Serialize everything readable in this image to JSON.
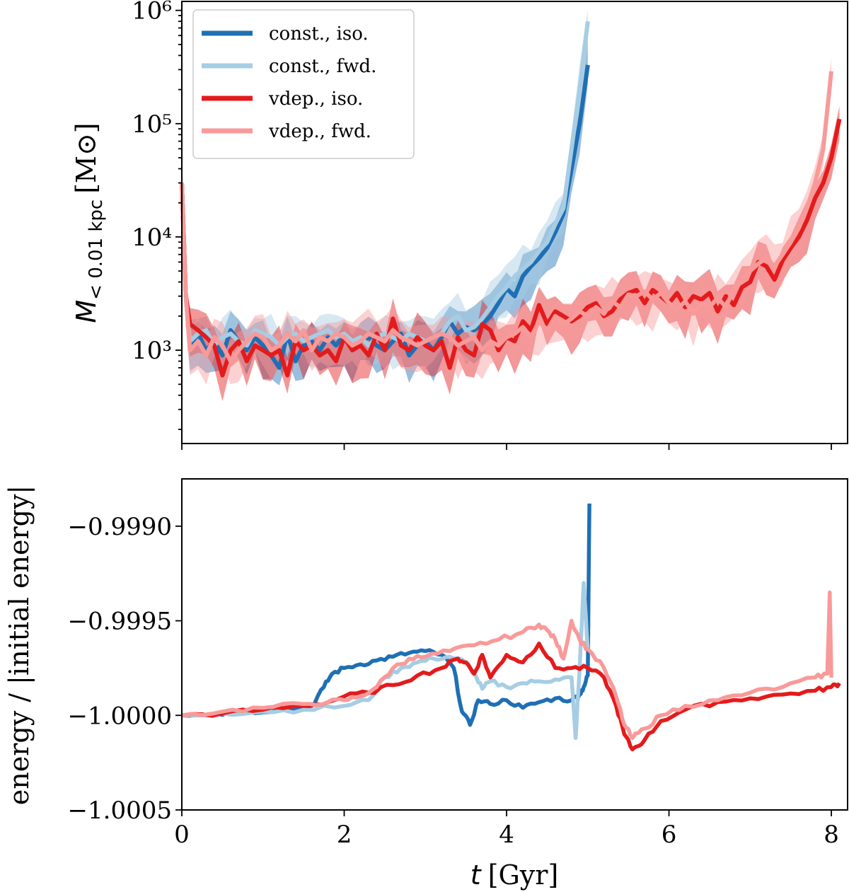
{
  "chart_data": [
    {
      "type": "line",
      "panel": "top",
      "ylabel_symbol": "M",
      "ylabel_subscript": "< 0.01 kpc",
      "ylabel_unit": "[M⊙]",
      "yscale": "log",
      "ylim": [
        150,
        1200000
      ],
      "xlim": [
        0,
        8.2
      ],
      "ytick_labels": [
        "10⁶",
        "10⁵",
        "10⁴",
        "10³"
      ],
      "ytick_values": [
        1000000,
        100000,
        10000,
        1000
      ],
      "grid": false,
      "legend_position": "top-left",
      "legend": [
        {
          "label": "const., iso.",
          "color": "#1f6fb4"
        },
        {
          "label": "const., fwd.",
          "color": "#a6cde3"
        },
        {
          "label": "vdep., iso.",
          "color": "#e31b1c"
        },
        {
          "label": "vdep., fwd.",
          "color": "#f89a99"
        }
      ],
      "series": [
        {
          "name": "const., iso.",
          "color": "#1f6fb4",
          "band_color": "#1f6fb4",
          "x": [
            0,
            0.05,
            0.1,
            0.2,
            0.3,
            0.4,
            0.5,
            0.6,
            0.7,
            0.8,
            0.9,
            1.0,
            1.1,
            1.2,
            1.3,
            1.4,
            1.5,
            1.6,
            1.7,
            1.8,
            1.9,
            2.0,
            2.1,
            2.2,
            2.3,
            2.4,
            2.5,
            2.6,
            2.7,
            2.8,
            2.9,
            3.0,
            3.1,
            3.2,
            3.3,
            3.4,
            3.5,
            3.6,
            3.7,
            3.8,
            3.9,
            4.0,
            4.1,
            4.2,
            4.3,
            4.4,
            4.5,
            4.6,
            4.7,
            4.8,
            4.9,
            5.0
          ],
          "y": [
            30000,
            3000,
            1100,
            1400,
            1000,
            1200,
            900,
            1500,
            1200,
            1000,
            1300,
            1100,
            900,
            700,
            1400,
            800,
            1100,
            1200,
            1000,
            1300,
            1100,
            1400,
            1000,
            1200,
            1300,
            1100,
            1000,
            1200,
            1400,
            900,
            1100,
            1200,
            1000,
            1300,
            1800,
            1400,
            1600,
            1500,
            1700,
            2000,
            2600,
            3500,
            3000,
            4500,
            5500,
            6500,
            8000,
            11000,
            16000,
            40000,
            100000,
            330000
          ]
        },
        {
          "name": "const., fwd.",
          "color": "#a6cde3",
          "band_color": "#a6cde3",
          "x": [
            0,
            0.05,
            0.1,
            0.2,
            0.3,
            0.4,
            0.5,
            0.6,
            0.7,
            0.8,
            0.9,
            1.0,
            1.1,
            1.2,
            1.3,
            1.4,
            1.5,
            1.6,
            1.7,
            1.8,
            1.9,
            2.0,
            2.1,
            2.2,
            2.3,
            2.4,
            2.5,
            2.6,
            2.7,
            2.8,
            2.9,
            3.0,
            3.1,
            3.2,
            3.3,
            3.4,
            3.5,
            3.6,
            3.7,
            3.8,
            3.9,
            4.0,
            4.1,
            4.2,
            4.3,
            4.4,
            4.5,
            4.6,
            4.7,
            4.8,
            4.9,
            5.0
          ],
          "y": [
            30000,
            3000,
            1200,
            1400,
            1500,
            1100,
            1300,
            1400,
            1200,
            1100,
            1500,
            1400,
            1300,
            1100,
            1300,
            1400,
            1200,
            1300,
            1400,
            1500,
            1300,
            1400,
            1200,
            1300,
            1100,
            1300,
            1400,
            1300,
            1200,
            1400,
            1300,
            1200,
            1300,
            1400,
            1800,
            2000,
            1500,
            1600,
            1900,
            2400,
            3000,
            3600,
            4500,
            5200,
            6000,
            7500,
            9000,
            13000,
            18000,
            60000,
            200000,
            800000
          ]
        },
        {
          "name": "vdep., iso.",
          "color": "#e31b1c",
          "band_color": "#e31b1c",
          "x": [
            0,
            0.05,
            0.1,
            0.2,
            0.3,
            0.4,
            0.5,
            0.6,
            0.7,
            0.8,
            0.9,
            1.0,
            1.1,
            1.2,
            1.3,
            1.4,
            1.5,
            1.6,
            1.7,
            1.8,
            1.9,
            2.0,
            2.1,
            2.2,
            2.3,
            2.4,
            2.5,
            2.6,
            2.7,
            2.8,
            2.9,
            3.0,
            3.1,
            3.2,
            3.3,
            3.4,
            3.5,
            3.6,
            3.7,
            3.8,
            3.9,
            4.0,
            4.1,
            4.2,
            4.3,
            4.4,
            4.5,
            4.6,
            4.7,
            4.8,
            4.9,
            5.0,
            5.1,
            5.2,
            5.3,
            5.4,
            5.5,
            5.6,
            5.7,
            5.8,
            5.9,
            6.0,
            6.1,
            6.2,
            6.3,
            6.4,
            6.5,
            6.6,
            6.7,
            6.8,
            6.9,
            7.0,
            7.1,
            7.2,
            7.3,
            7.4,
            7.5,
            7.6,
            7.7,
            7.8,
            7.9,
            8.0,
            8.1
          ],
          "y": [
            30000,
            3000,
            1700,
            1500,
            1300,
            1100,
            600,
            1000,
            1200,
            800,
            1100,
            1000,
            900,
            1000,
            600,
            1200,
            1000,
            1100,
            900,
            1000,
            800,
            1300,
            1000,
            1100,
            900,
            1400,
            1000,
            1900,
            1100,
            1000,
            1300,
            1100,
            1000,
            1200,
            700,
            1300,
            1000,
            900,
            1700,
            1500,
            1000,
            1300,
            1200,
            1800,
            1500,
            2500,
            1700,
            2200,
            2000,
            1800,
            2000,
            2400,
            2600,
            2000,
            2200,
            2800,
            3200,
            3400,
            2600,
            3400,
            3000,
            2600,
            3200,
            2400,
            3000,
            2800,
            3200,
            2200,
            3000,
            2500,
            3600,
            4000,
            6000,
            5500,
            4200,
            6200,
            8000,
            10000,
            14000,
            22000,
            30000,
            50000,
            110000
          ]
        },
        {
          "name": "vdep., fwd.",
          "color": "#f89a99",
          "band_color": "#f89a99",
          "x": [
            0,
            0.05,
            0.1,
            0.2,
            0.3,
            0.4,
            0.5,
            0.6,
            0.7,
            0.8,
            0.9,
            1.0,
            1.1,
            1.2,
            1.3,
            1.4,
            1.5,
            1.6,
            1.7,
            1.8,
            1.9,
            2.0,
            2.1,
            2.2,
            2.3,
            2.4,
            2.5,
            2.6,
            2.7,
            2.8,
            2.9,
            3.0,
            3.1,
            3.2,
            3.3,
            3.4,
            3.5,
            3.6,
            3.7,
            3.8,
            3.9,
            4.0,
            4.1,
            4.2,
            4.3,
            4.4,
            4.5,
            4.6,
            4.7,
            4.8,
            4.9,
            5.0,
            5.1,
            5.2,
            5.3,
            5.4,
            5.5,
            5.6,
            5.7,
            5.8,
            5.9,
            6.0,
            6.1,
            6.2,
            6.3,
            6.4,
            6.5,
            6.6,
            6.7,
            6.8,
            6.9,
            7.0,
            7.1,
            7.2,
            7.3,
            7.4,
            7.5,
            7.6,
            7.7,
            7.8,
            7.9,
            8.0
          ],
          "y": [
            30000,
            3000,
            1000,
            1200,
            900,
            1300,
            1100,
            800,
            1000,
            1200,
            1400,
            1300,
            1000,
            1100,
            1400,
            1200,
            1500,
            1000,
            1300,
            1200,
            1400,
            1300,
            1100,
            1200,
            1400,
            1300,
            1200,
            1500,
            1300,
            1200,
            1100,
            1200,
            1300,
            1400,
            1300,
            1100,
            1200,
            1300,
            1000,
            1200,
            1100,
            1300,
            1400,
            1600,
            1300,
            1800,
            1500,
            2000,
            1700,
            1900,
            2200,
            2000,
            2400,
            2100,
            2700,
            2400,
            3100,
            3000,
            3300,
            2800,
            3200,
            2600,
            2300,
            2700,
            2100,
            2600,
            2400,
            2900,
            2400,
            3500,
            4200,
            5000,
            5800,
            6500,
            5500,
            7000,
            9000,
            12000,
            18000,
            30000,
            60000,
            290000
          ]
        }
      ]
    },
    {
      "type": "line",
      "panel": "bottom",
      "xlabel_symbol": "t",
      "xlabel_unit": "[Gyr]",
      "ylabel": "energy / |initial energy|",
      "ylim": [
        -1.0005,
        -0.99875
      ],
      "xlim": [
        0,
        8.2
      ],
      "xtick_labels": [
        "0",
        "2",
        "4",
        "6",
        "8"
      ],
      "xtick_values": [
        0,
        2,
        4,
        6,
        8
      ],
      "ytick_labels": [
        "−0.9990",
        "−0.9995",
        "−1.0000",
        "−1.0005"
      ],
      "ytick_values": [
        -0.999,
        -0.9995,
        -1.0,
        -1.0005
      ],
      "grid": false,
      "series": [
        {
          "name": "const., iso.",
          "color": "#1f6fb4",
          "x": [
            0,
            0.4,
            0.8,
            1.2,
            1.6,
            1.75,
            1.85,
            2.0,
            2.2,
            2.4,
            2.6,
            2.8,
            3.0,
            3.2,
            3.35,
            3.45,
            3.55,
            3.65,
            3.8,
            4.0,
            4.2,
            4.4,
            4.6,
            4.8,
            4.9,
            4.95,
            5.0,
            5.02
          ],
          "y": [
            -1.0,
            -0.99999,
            -0.99998,
            -0.99997,
            -0.99995,
            -0.99985,
            -0.99978,
            -0.99975,
            -0.99973,
            -0.99971,
            -0.99969,
            -0.99967,
            -0.99966,
            -0.99968,
            -0.99975,
            -0.99998,
            -1.00005,
            -0.99992,
            -0.99994,
            -0.99992,
            -0.99996,
            -0.99993,
            -0.99991,
            -0.99992,
            -0.99989,
            -0.99985,
            -0.99979,
            -0.99888
          ]
        },
        {
          "name": "const., fwd.",
          "color": "#a6cde3",
          "x": [
            0,
            0.5,
            1.0,
            1.5,
            2.0,
            2.3,
            2.5,
            2.7,
            2.9,
            3.1,
            3.3,
            3.5,
            3.6,
            3.7,
            3.8,
            4.0,
            4.2,
            4.4,
            4.6,
            4.8,
            4.85,
            4.9,
            4.95,
            5.0
          ],
          "y": [
            -1.0,
            -0.99999,
            -0.99998,
            -0.99997,
            -0.99995,
            -0.99992,
            -0.9998,
            -0.99975,
            -0.99972,
            -0.9997,
            -0.99969,
            -0.99972,
            -0.99978,
            -0.99986,
            -0.99982,
            -0.99985,
            -0.99983,
            -0.99982,
            -0.99981,
            -0.9998,
            -1.00012,
            -0.99975,
            -0.9993,
            -0.99965
          ]
        },
        {
          "name": "vdep., iso.",
          "color": "#e31b1c",
          "x": [
            0,
            0.5,
            1.0,
            1.5,
            1.8,
            2.0,
            2.3,
            2.6,
            2.9,
            3.2,
            3.4,
            3.5,
            3.6,
            3.7,
            3.8,
            4.0,
            4.2,
            4.4,
            4.6,
            4.8,
            5.0,
            5.2,
            5.35,
            5.45,
            5.55,
            5.7,
            5.9,
            6.2,
            6.6,
            7.0,
            7.4,
            7.8,
            8.0,
            8.1
          ],
          "y": [
            -1.0,
            -0.99999,
            -0.99997,
            -0.99995,
            -0.99993,
            -0.9999,
            -0.99988,
            -0.99984,
            -0.99979,
            -0.99975,
            -0.9997,
            -0.99972,
            -0.99978,
            -0.99968,
            -0.9998,
            -0.99968,
            -0.99972,
            -0.99962,
            -0.99975,
            -0.99975,
            -0.99975,
            -0.9998,
            -0.99995,
            -1.0001,
            -1.00018,
            -1.00013,
            -1.00003,
            -0.99997,
            -0.99993,
            -0.99991,
            -0.99989,
            -0.99987,
            -0.99985,
            -0.99983
          ]
        },
        {
          "name": "vdep., fwd.",
          "color": "#f89a99",
          "x": [
            0,
            0.5,
            1.0,
            1.5,
            1.8,
            2.0,
            2.2,
            2.4,
            2.6,
            2.8,
            3.0,
            3.3,
            3.6,
            3.9,
            4.2,
            4.4,
            4.5,
            4.6,
            4.7,
            4.8,
            4.9,
            5.0,
            5.2,
            5.35,
            5.45,
            5.55,
            5.7,
            5.9,
            6.2,
            6.6,
            7.0,
            7.4,
            7.8,
            7.95,
            7.98,
            8.0
          ],
          "y": [
            -1.0,
            -0.99998,
            -0.99996,
            -0.99994,
            -0.99993,
            -0.99992,
            -0.9999,
            -0.99985,
            -0.99975,
            -0.9997,
            -0.99969,
            -0.99966,
            -0.99963,
            -0.9996,
            -0.99956,
            -0.99952,
            -0.99955,
            -0.9996,
            -0.9997,
            -0.9995,
            -0.9996,
            -0.99965,
            -0.99975,
            -0.9999,
            -1.00005,
            -1.00012,
            -1.00007,
            -1.0,
            -0.99995,
            -0.99992,
            -0.99988,
            -0.99985,
            -0.9998,
            -0.99978,
            -0.99935,
            -0.9998
          ]
        }
      ]
    }
  ]
}
